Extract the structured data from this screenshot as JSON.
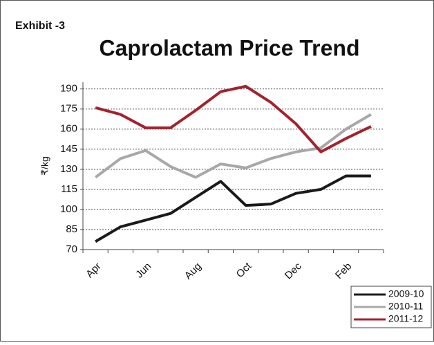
{
  "label": "Exhibit -3",
  "chart_data": {
    "type": "line",
    "title": "Caprolactam Price Trend",
    "y_label": "₹/kg",
    "categories": [
      "Apr",
      null,
      "Jun",
      null,
      "Aug",
      null,
      "Oct",
      null,
      "Dec",
      null,
      "Feb",
      null
    ],
    "series": [
      {
        "name": "2009-10",
        "color": "#1a1a1a",
        "values": [
          76,
          87,
          92,
          97,
          109,
          121,
          103,
          104,
          112,
          115,
          125,
          125
        ]
      },
      {
        "name": "2010-11",
        "color": "#a8a8a8",
        "values": [
          124,
          138,
          144,
          132,
          124,
          134,
          131,
          138,
          143,
          146,
          160,
          171
        ]
      },
      {
        "name": "2011-12",
        "color": "#a3222d",
        "values": [
          176,
          171,
          161,
          161,
          174,
          188,
          192,
          180,
          164,
          143,
          153,
          162
        ]
      }
    ],
    "ylim": [
      70,
      195
    ],
    "yticks": [
      70,
      85,
      100,
      115,
      130,
      145,
      160,
      175,
      190
    ],
    "grid": true,
    "legend": "bottom-right"
  }
}
